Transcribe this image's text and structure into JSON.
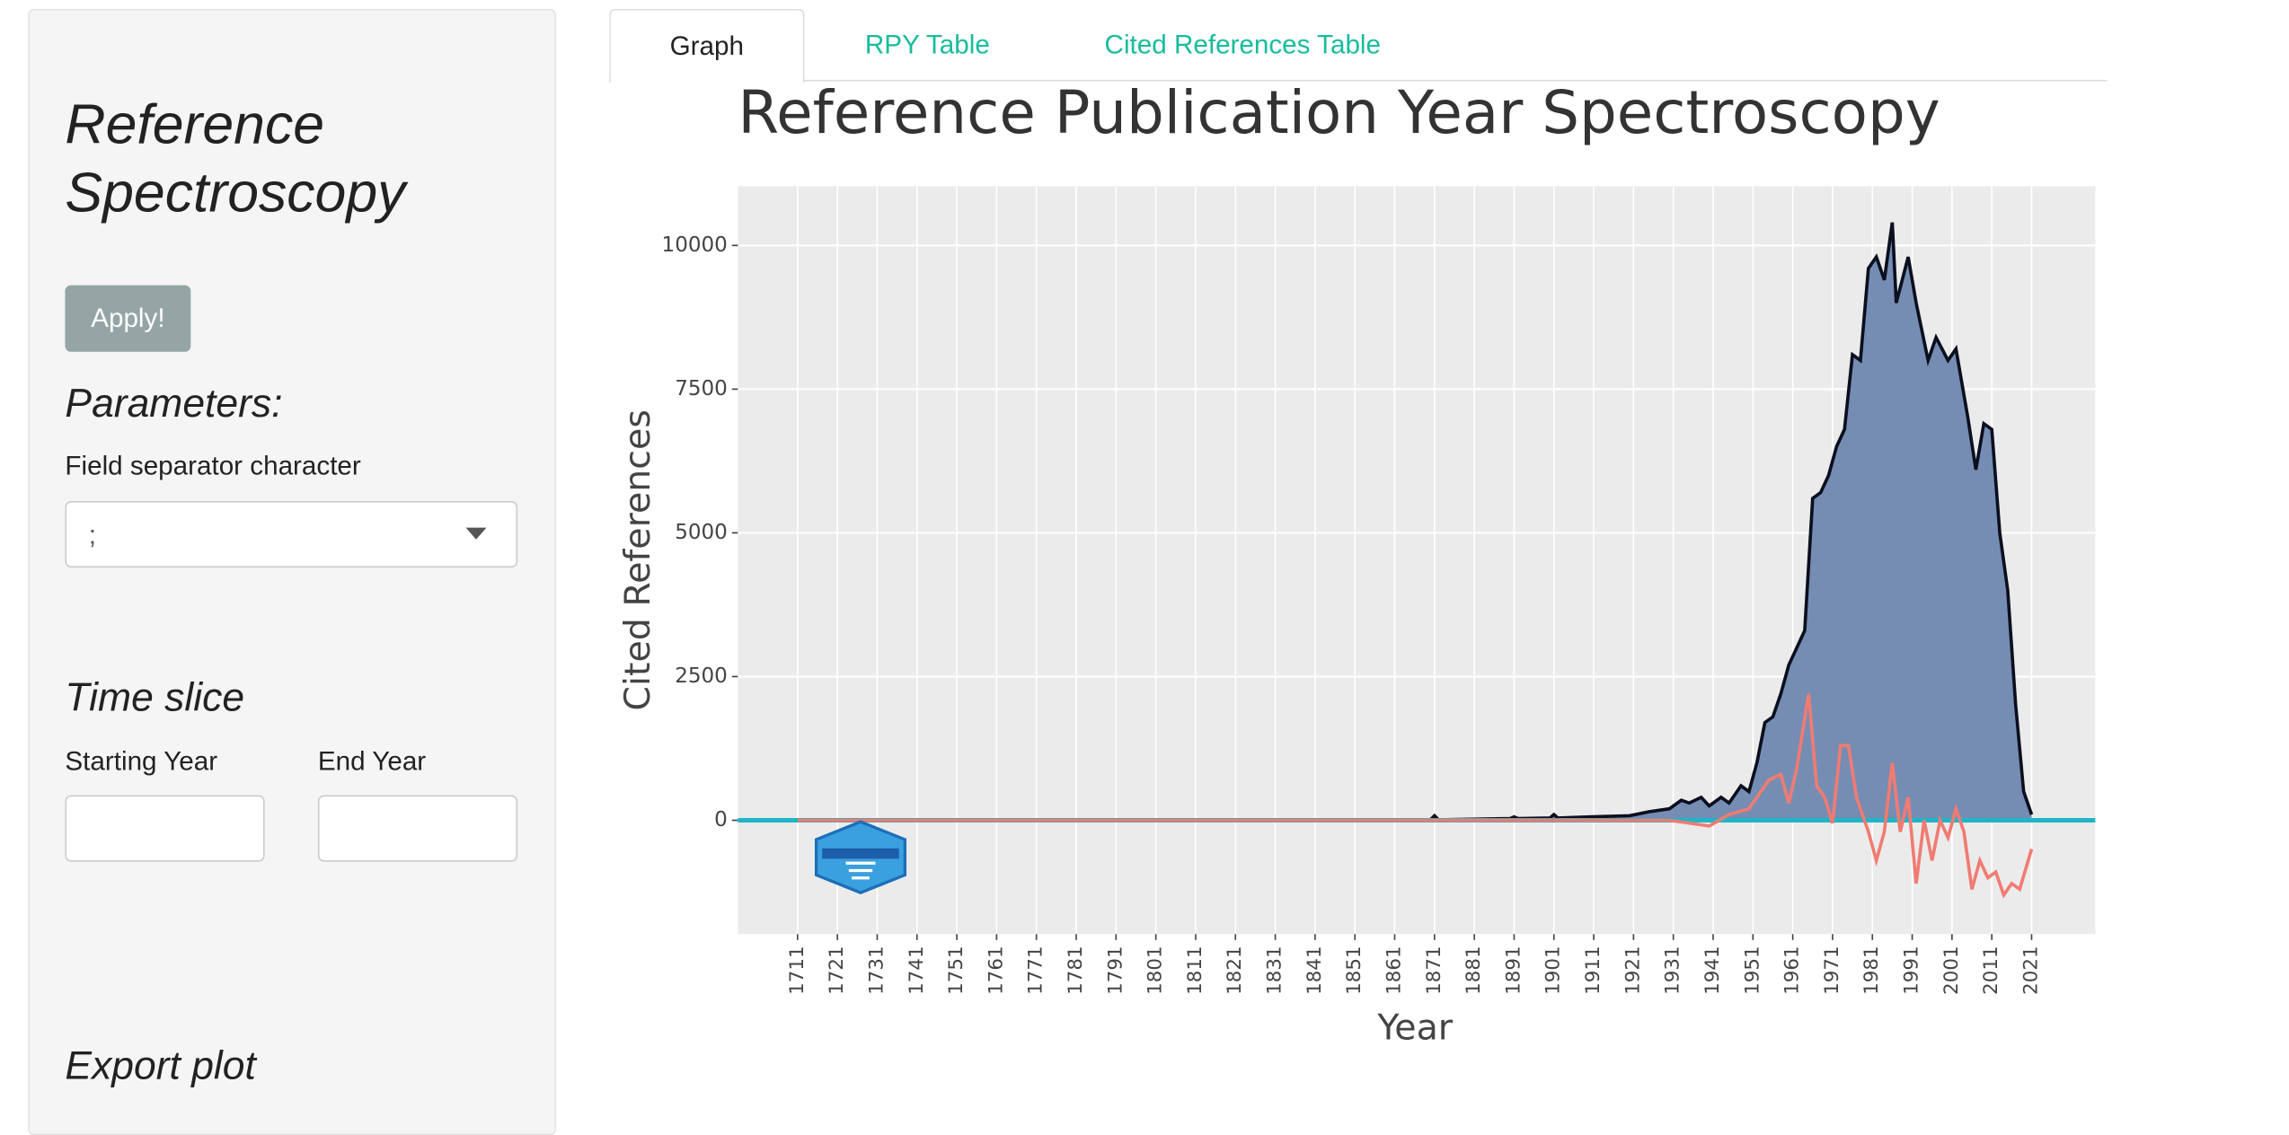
{
  "sidebar": {
    "title": "Reference Spectroscopy",
    "apply_button": "Apply!",
    "parameters_heading": "Parameters:",
    "separator_label": "Field separator character",
    "separator_value": ";",
    "time_slice_heading": "Time slice",
    "start_label": "Starting Year",
    "end_label": "End Year",
    "export_heading": "Export plot"
  },
  "tabs": [
    "Graph",
    "RPY Table",
    "Cited References Table"
  ],
  "chart_data": {
    "type": "area",
    "title": "Reference Publication Year Spectroscopy",
    "x_label": "Year",
    "y_label": "Cited References",
    "xlim": [
      1696,
      2037
    ],
    "ylim": [
      -1980,
      11030
    ],
    "xticks": [
      1711,
      1721,
      1731,
      1741,
      1751,
      1761,
      1771,
      1781,
      1791,
      1801,
      1811,
      1821,
      1831,
      1841,
      1851,
      1861,
      1871,
      1881,
      1891,
      1901,
      1911,
      1921,
      1931,
      1941,
      1951,
      1961,
      1971,
      1981,
      1991,
      2001,
      2011,
      2021
    ],
    "yticks": [
      0,
      2500,
      5000,
      7500,
      10000
    ],
    "grid": true,
    "hline": 0,
    "series": [
      {
        "x": [
          1711,
          1870,
          1871,
          1872,
          1890,
          1891,
          1892,
          1900,
          1901,
          1902,
          1910,
          1920,
          1925,
          1930,
          1933,
          1935,
          1938,
          1940,
          1943,
          1945,
          1948,
          1950,
          1952,
          1954,
          1956,
          1958,
          1960,
          1962,
          1964,
          1966,
          1968,
          1970,
          1972,
          1974,
          1976,
          1978,
          1980,
          1982,
          1984,
          1986,
          1987,
          1990,
          1992,
          1995,
          1997,
          2000,
          2002,
          2005,
          2007,
          2009,
          2011,
          2013,
          2015,
          2017,
          2019,
          2021
        ],
        "values": [
          0,
          10,
          80,
          10,
          30,
          60,
          30,
          40,
          100,
          40,
          60,
          80,
          150,
          200,
          350,
          300,
          400,
          250,
          400,
          300,
          600,
          500,
          1000,
          1700,
          1800,
          2200,
          2700,
          3000,
          3300,
          5600,
          5700,
          6000,
          6500,
          6800,
          8100,
          8000,
          9600,
          9800,
          9400,
          10400,
          9000,
          9800,
          9000,
          8000,
          8400,
          8000,
          8200,
          7000,
          6100,
          6900,
          6800,
          5000,
          4000,
          2000,
          500,
          100
        ],
        "color": "#6f88b0"
      },
      {
        "x": [
          1711,
          1930,
          1940,
          1945,
          1950,
          1955,
          1958,
          1960,
          1962,
          1965,
          1967,
          1969,
          1971,
          1973,
          1975,
          1977,
          1980,
          1982,
          1984,
          1986,
          1988,
          1990,
          1992,
          1994,
          1996,
          1998,
          2000,
          2002,
          2004,
          2006,
          2008,
          2010,
          2012,
          2014,
          2016,
          2018,
          2021
        ],
        "values": [
          0,
          0,
          -100,
          100,
          200,
          700,
          800,
          300,
          900,
          2200,
          600,
          400,
          -50,
          1300,
          1300,
          400,
          -200,
          -700,
          -200,
          1000,
          -200,
          400,
          -1100,
          0,
          -700,
          0,
          -300,
          200,
          -200,
          -1200,
          -700,
          -1000,
          -900,
          -1300,
          -1100,
          -1200,
          -500
        ],
        "color": "#f07b72"
      }
    ]
  }
}
